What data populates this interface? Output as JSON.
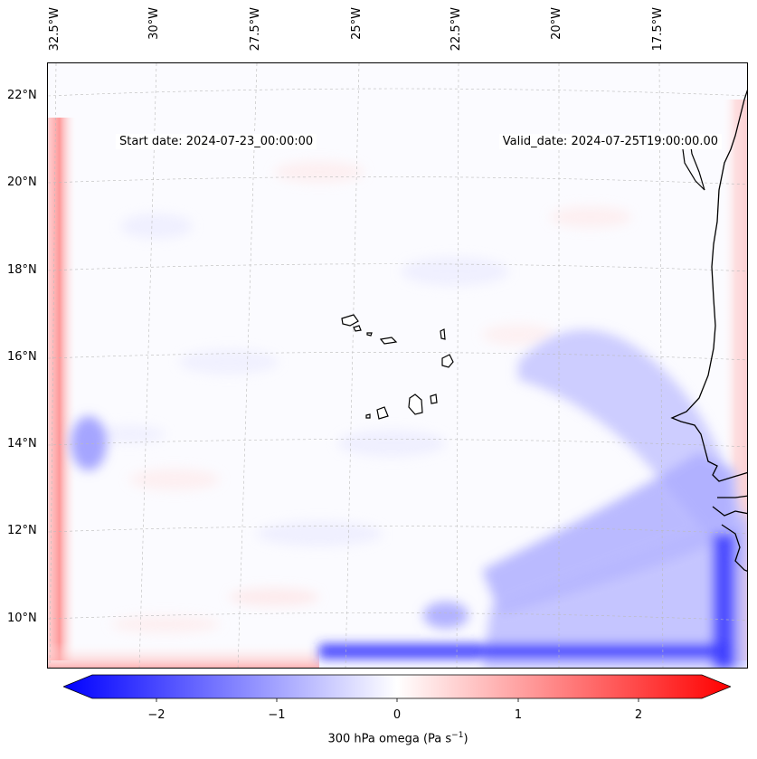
{
  "map": {
    "start_date": "Start date: 2024-07-23_00:00:00",
    "valid_date": "Valid_date: 2024-07-25T19:00:00.00",
    "lon_labels": [
      "32.5°W",
      "30°W",
      "27.5°W",
      "25°W",
      "22.5°W",
      "20°W",
      "17.5°W"
    ],
    "lat_labels": [
      "22°N",
      "20°N",
      "18°N",
      "16°N",
      "14°N",
      "12°N",
      "10°N"
    ],
    "colors": {
      "negative": "#0000ff",
      "zero": "#ffffff",
      "positive": "#ff0000",
      "coast": "#000000",
      "grid": "#bbbbbb"
    }
  },
  "colorbar": {
    "label_text": "300 hPa omega (Pa s",
    "label_sup": "−1",
    "label_close": ")",
    "ticks": [
      "−2",
      "−1",
      "0",
      "1",
      "2"
    ],
    "range": [
      -2.75,
      2.75
    ]
  }
}
